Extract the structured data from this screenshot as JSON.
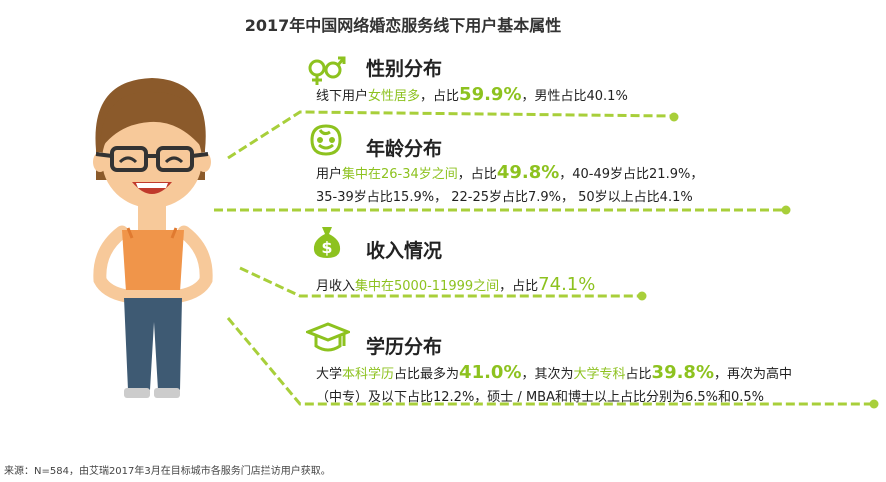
{
  "title": "2017年中国网络婚恋服务线下用户基本属性",
  "colors": {
    "accent": "#8dc21f",
    "text": "#222222"
  },
  "sections": [
    {
      "icon": "gender-icon",
      "heading": "性别分布",
      "lines": [
        {
          "p1": "线下用户",
          "h1": "女性居多",
          "p2": "，占比",
          "v1": "59.9%",
          "p3": "，男性占比40.1%"
        }
      ]
    },
    {
      "icon": "smiley-face-icon",
      "heading": "年龄分布",
      "lines": [
        {
          "p1": "用户",
          "h1": "集中在26-34岁之间",
          "p2": "，占比",
          "v1": "49.8%",
          "p3": "，40-49岁占比21.9%，"
        },
        {
          "text": "35-39岁占比15.9%， 22-25岁占比7.9%，  50岁以上占比4.1%"
        }
      ]
    },
    {
      "icon": "money-bag-icon",
      "heading": "收入情况",
      "lines": [
        {
          "p1": "月收入",
          "h1": "集中在5000-11999之间",
          "p2": "，占比",
          "v1": "74.1%"
        }
      ]
    },
    {
      "icon": "graduation-cap-icon",
      "heading": "学历分布",
      "lines": [
        {
          "p1": "大学",
          "h1": "本科学历",
          "p2": "占比最多为",
          "v1": "41.0%",
          "p3": "，其次为",
          "h2": "大学专科",
          "p4": "占比",
          "v2": "39.8%",
          "p5": "，再次为高中"
        },
        {
          "text": "（中专）及以下占比12.2%，硕士 / MBA和博士以上占比分别为6.5%和0.5%"
        }
      ]
    }
  ],
  "footer": "来源：N=584，由艾瑞2017年3月在目标城市各服务门店拦访用户获取。"
}
